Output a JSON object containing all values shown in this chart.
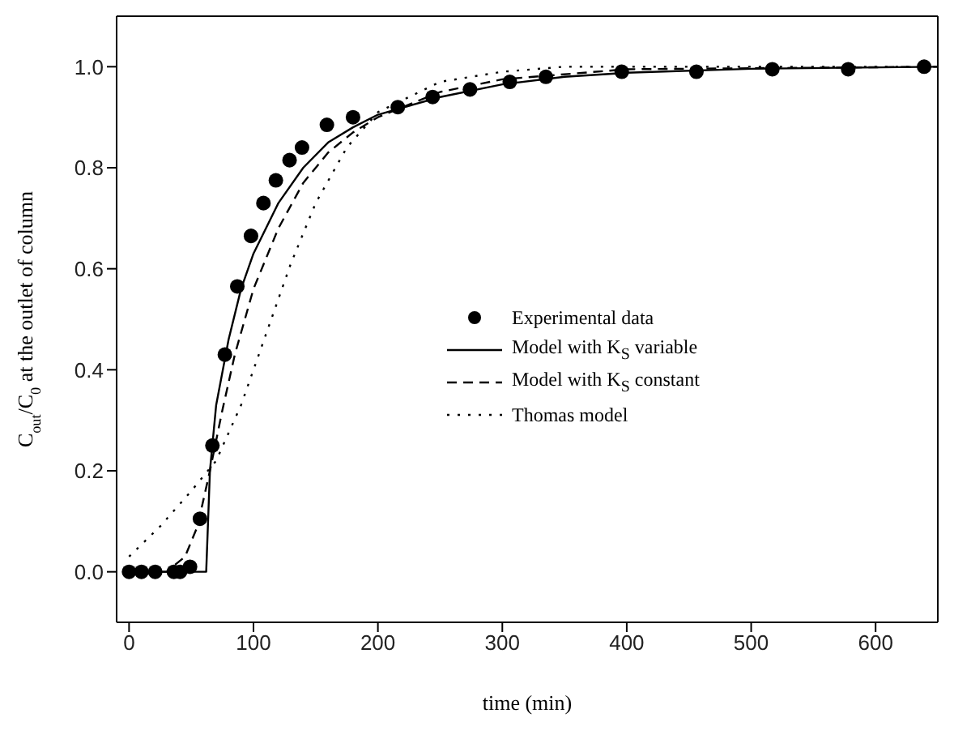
{
  "chart_data": {
    "type": "line",
    "xlabel": "time (min)",
    "ylabel": "C$_{out}$/C$_{0}$ at the outlet of column",
    "xlim": [
      -10,
      650
    ],
    "xticks": [
      0,
      100,
      200,
      300,
      400,
      500,
      600
    ],
    "ylim": [
      -0.1,
      1.1
    ],
    "yticks": [
      {
        "value": 0,
        "label": "0.0"
      },
      {
        "value": 0.2,
        "label": "0.2"
      },
      {
        "value": 0.4,
        "label": "0.4"
      },
      {
        "value": 0.6,
        "label": "0.6"
      },
      {
        "value": 0.8,
        "label": "0.8"
      },
      {
        "value": 1,
        "label": "1.0"
      }
    ],
    "grid": false,
    "legend": "right",
    "series": [
      {
        "name": "Experimental data",
        "type": "scatter",
        "marker": "circle",
        "color": "#000000",
        "x": [
          0,
          10,
          21,
          36,
          41,
          49,
          57,
          67,
          77,
          87,
          98,
          108,
          118,
          129,
          139,
          159,
          180,
          216,
          244,
          274,
          306,
          335,
          396,
          456,
          517,
          578,
          639
        ],
        "values": [
          0,
          0,
          0,
          0,
          0,
          0.01,
          0.105,
          0.25,
          0.43,
          0.565,
          0.665,
          0.73,
          0.775,
          0.815,
          0.84,
          0.885,
          0.9,
          0.92,
          0.94,
          0.955,
          0.97,
          0.98,
          0.99,
          0.99,
          0.995,
          0.995,
          1.0
        ]
      },
      {
        "name": "Model with K$_{S}$ variable",
        "line_style": "solid",
        "marker": "none",
        "color": "#000000",
        "x": [
          0,
          62,
          65,
          70,
          80,
          90,
          100,
          120,
          140,
          160,
          180,
          200,
          250,
          300,
          350,
          400,
          500,
          650
        ],
        "values": [
          0,
          0,
          0.2,
          0.33,
          0.46,
          0.56,
          0.63,
          0.73,
          0.8,
          0.85,
          0.88,
          0.905,
          0.94,
          0.965,
          0.98,
          0.988,
          0.996,
          1.0
        ]
      },
      {
        "name": "Model with K$_{S}$ constant",
        "line_style": "dashed",
        "marker": "none",
        "color": "#000000",
        "x": [
          0,
          30,
          45,
          55,
          65,
          75,
          85,
          100,
          120,
          140,
          160,
          180,
          200,
          250,
          300,
          400,
          650
        ],
        "values": [
          0,
          0,
          0.03,
          0.09,
          0.2,
          0.32,
          0.43,
          0.56,
          0.68,
          0.77,
          0.83,
          0.87,
          0.9,
          0.95,
          0.975,
          0.995,
          1.0
        ]
      },
      {
        "name": "Thomas model",
        "line_style": "dotted",
        "marker": "none",
        "color": "#000000",
        "x": [
          0,
          25,
          50,
          70,
          90,
          110,
          130,
          150,
          175,
          200,
          250,
          300,
          350,
          650
        ],
        "values": [
          0.03,
          0.09,
          0.16,
          0.22,
          0.33,
          0.47,
          0.61,
          0.73,
          0.84,
          0.91,
          0.97,
          0.99,
          1.0,
          1.0
        ]
      }
    ]
  }
}
